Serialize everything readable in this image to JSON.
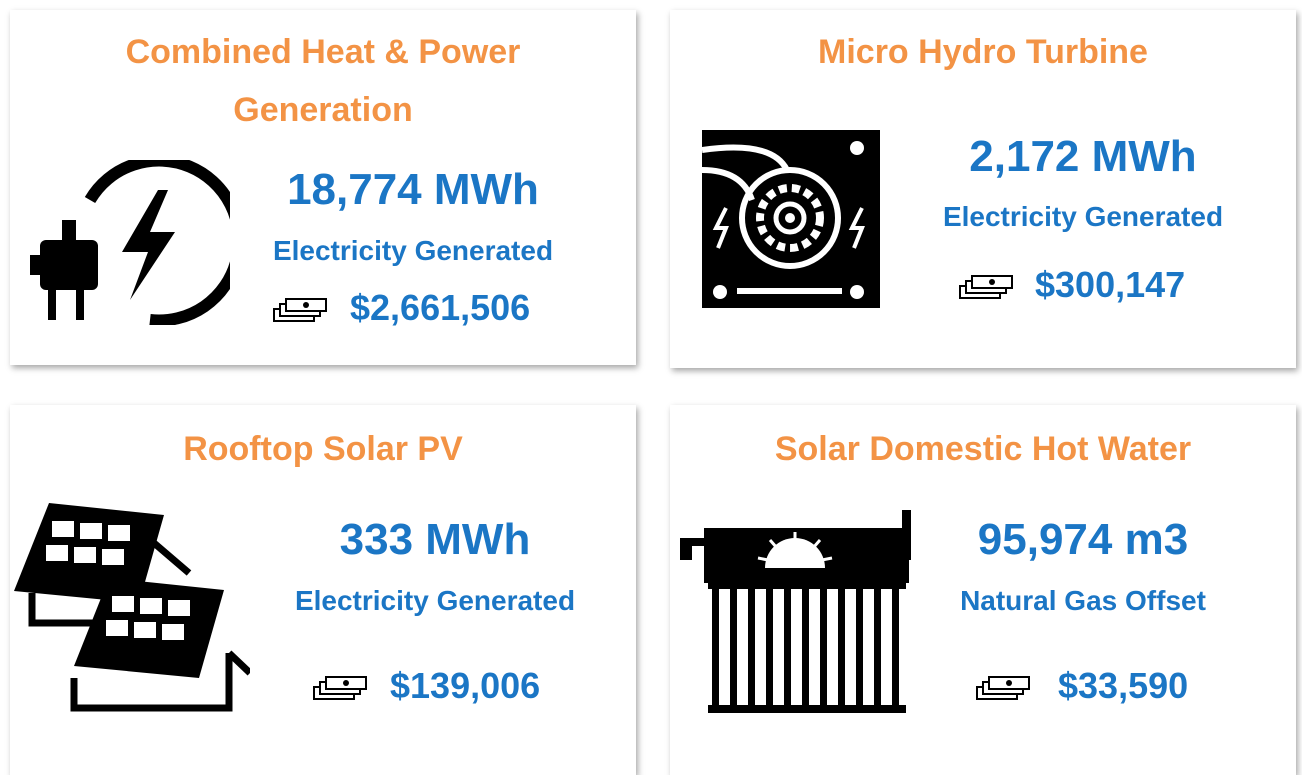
{
  "cards": [
    {
      "title": "Combined Heat & Power Generation",
      "value": "18,774 MWh",
      "metric": "Electricity Generated",
      "savings": "$2,661,506"
    },
    {
      "title": "Micro Hydro Turbine",
      "value": "2,172 MWh",
      "metric": "Electricity Generated",
      "savings": "$300,147"
    },
    {
      "title": "Rooftop Solar PV",
      "value": "333 MWh",
      "metric": "Electricity Generated",
      "savings": "$139,006"
    },
    {
      "title": "Solar Domestic Hot Water",
      "value": "95,974 m3",
      "metric": "Natural Gas Offset",
      "savings": "$33,590"
    }
  ]
}
